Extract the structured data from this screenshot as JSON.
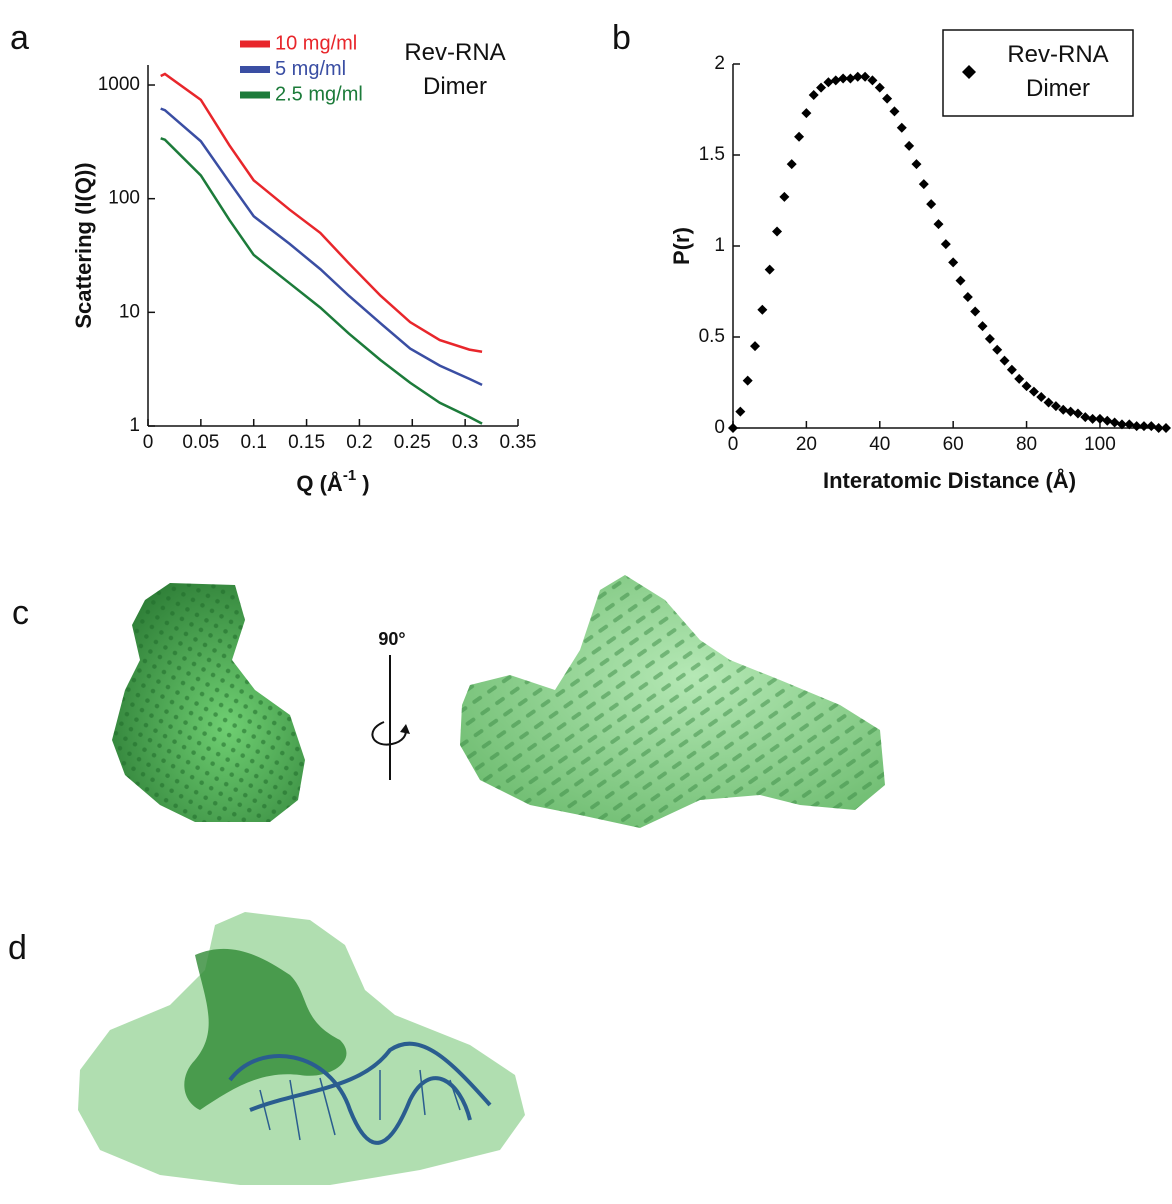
{
  "chart_data": [
    {
      "type": "line",
      "panel_label": "a",
      "ylabel": "Scattering (I(Q))",
      "xlabel": "Q (Å",
      "xlabel_superscript": "-1",
      "xlabel_suffix": " )",
      "annotation": "Rev-RNA Dimer",
      "yscale": "log",
      "grid": false,
      "x": [
        0.012,
        0.016,
        0.05,
        0.077,
        0.1,
        0.134,
        0.163,
        0.19,
        0.22,
        0.248,
        0.276,
        0.304,
        0.316
      ],
      "series": [
        {
          "name": "10 mg/ml",
          "color": "#e8262b",
          "values": [
            1200,
            1250,
            740,
            295,
            145,
            80,
            50,
            27,
            14,
            8.2,
            5.7,
            4.7,
            4.5
          ]
        },
        {
          "name": "5 mg/ml",
          "color": "#3a4ea3",
          "values": [
            620,
            600,
            320,
            140,
            70,
            40,
            24,
            14,
            8,
            4.8,
            3.4,
            2.6,
            2.3
          ]
        },
        {
          "name": "2.5 mg/ml",
          "color": "#1c7b3a",
          "values": [
            340,
            330,
            160,
            65,
            32,
            18,
            11,
            6.5,
            3.8,
            2.4,
            1.6,
            1.2,
            1.05
          ]
        }
      ],
      "xlim": [
        0,
        0.35
      ],
      "xticks": [
        0,
        0.05,
        0.1,
        0.15,
        0.2,
        0.25,
        0.3,
        0.35
      ],
      "ylim": [
        1,
        1500
      ],
      "yticks": [
        1,
        10,
        100,
        1000
      ]
    },
    {
      "type": "scatter",
      "panel_label": "b",
      "ylabel": "P(r)",
      "xlabel": "Interatomic Distance (Å)",
      "grid": false,
      "legend": "upper right",
      "x": [
        0,
        2,
        4,
        6,
        8,
        10,
        12,
        14,
        16,
        18,
        20,
        22,
        24,
        26,
        28,
        30,
        32,
        34,
        36,
        38,
        40,
        42,
        44,
        46,
        48,
        50,
        52,
        54,
        56,
        58,
        60,
        62,
        64,
        66,
        68,
        70,
        72,
        74,
        76,
        78,
        80,
        82,
        84,
        86,
        88,
        90,
        92,
        94,
        96,
        98,
        100,
        102,
        104,
        106,
        108,
        110,
        112,
        114,
        116,
        118
      ],
      "series": [
        {
          "name": "Rev-RNA Dimer",
          "color": "#000000",
          "values": [
            0,
            0.09,
            0.26,
            0.45,
            0.65,
            0.87,
            1.08,
            1.27,
            1.45,
            1.6,
            1.73,
            1.83,
            1.87,
            1.9,
            1.91,
            1.92,
            1.92,
            1.93,
            1.93,
            1.91,
            1.87,
            1.81,
            1.74,
            1.65,
            1.55,
            1.45,
            1.34,
            1.23,
            1.12,
            1.01,
            0.91,
            0.81,
            0.72,
            0.64,
            0.56,
            0.49,
            0.43,
            0.37,
            0.32,
            0.27,
            0.23,
            0.2,
            0.17,
            0.14,
            0.12,
            0.1,
            0.09,
            0.08,
            0.06,
            0.05,
            0.05,
            0.04,
            0.03,
            0.02,
            0.02,
            0.01,
            0.01,
            0.01,
            0,
            0
          ]
        }
      ],
      "xlim": [
        0,
        118
      ],
      "xticks": [
        0,
        20,
        40,
        60,
        80,
        100
      ],
      "ylim": [
        0,
        2
      ],
      "yticks": [
        0,
        0.5,
        1,
        1.5,
        2
      ]
    }
  ],
  "panels": {
    "c": {
      "label": "c",
      "rotation": "90°"
    },
    "d": {
      "label": "d"
    }
  }
}
